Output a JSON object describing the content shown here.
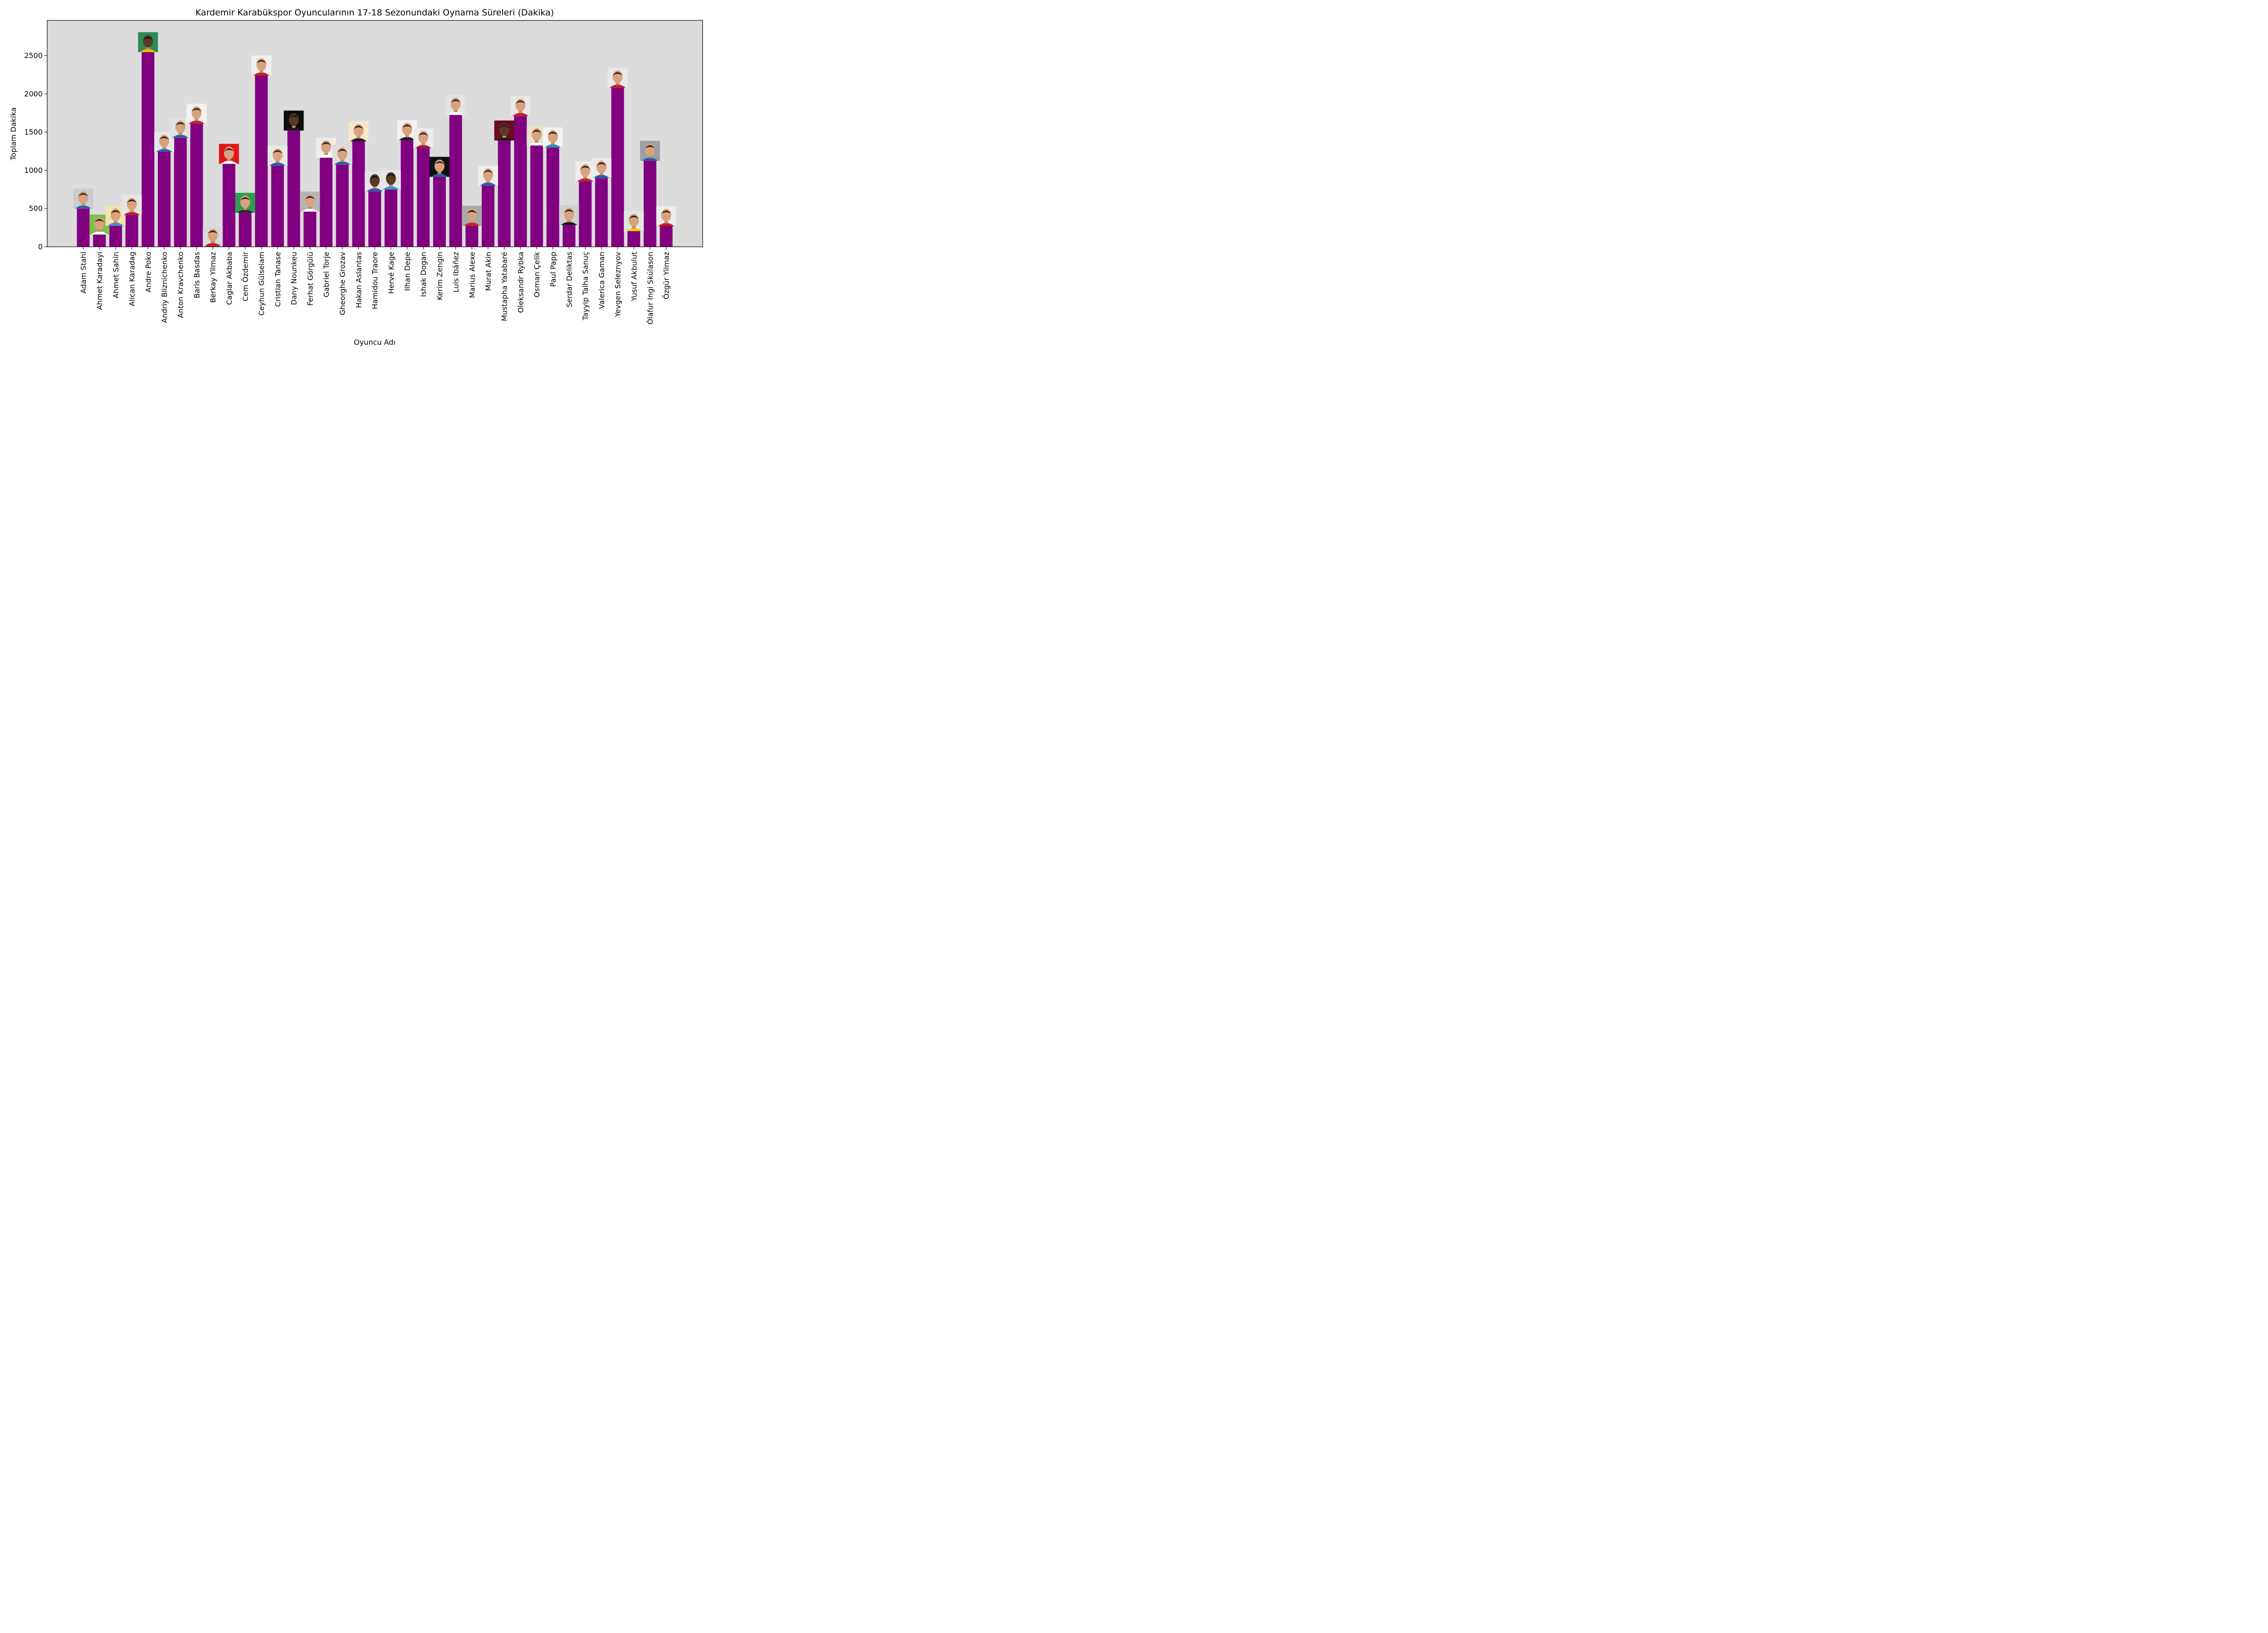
{
  "chart_data": {
    "type": "bar",
    "title": "Kardemir Karabükspor Oyuncularının 17-18 Sezonundaki Oynama Süreleri (Dakika)",
    "xlabel": "Oyuncu Adı",
    "ylabel": "Toplam Dakika",
    "ylim": [
      0,
      2960
    ],
    "yticks": [
      0,
      500,
      1000,
      1500,
      2000,
      2500
    ],
    "grid": false,
    "bar_color": "#800080",
    "plot_background": "#dcdcdc",
    "categories": [
      "Adam Stahl",
      "Ahmet Karadayi",
      "Ahmet Sahin",
      "Alican Karadag",
      "Andre Poko",
      "Andriy Bliznichenko",
      "Anton Kravchenko",
      "Baris Basdas",
      "Berkay Yilmaz",
      "Caglar Akbaba",
      "Cem Özdemir",
      "Ceyhun Gülselam",
      "Cristian Tanase",
      "Dany Nounkeu",
      "Ferhat Görgülü",
      "Gabriel Torje",
      "Gheorghe Grozav",
      "Hakan Aslantas",
      "Hamidou Traore",
      "Hervé Kage",
      "Ilhan Depe",
      "Ishak Dogan",
      "Kerim Zengin",
      "Luis Ibáñez",
      "Marius Alexe",
      "Murat Akin",
      "Mustapha Yatabaré",
      "Oleksandr Rybka",
      "Osman Çelik",
      "Paul Papp",
      "Serdar Deliktas",
      "Tayyip Talha Sanuç",
      "Valerica Gaman",
      "Yevgen Seleznyov",
      "Yusuf Akbulut",
      "Ólafur Ingi Skúlason",
      "Özgür Yilmaz"
    ],
    "values": [
      500,
      160,
      275,
      415,
      2545,
      1240,
      1425,
      1610,
      10,
      1085,
      445,
      2240,
      1060,
      1520,
      460,
      1165,
      1075,
      1380,
      725,
      750,
      1395,
      1290,
      915,
      1725,
      275,
      800,
      1390,
      1710,
      1325,
      1300,
      285,
      855,
      900,
      2080,
      205,
      1125,
      270
    ],
    "photo_backgrounds": [
      "#c9ccd2",
      "#7fbf4a",
      "#f3e3b0",
      "#e6e6e6",
      "#2e8b57",
      "#e8e8e8",
      "#e2e2e2",
      "#f2f2f2",
      "#d9d9d9",
      "#e01818",
      "#2e9e52",
      "#f0f0f0",
      "#e9e9e9",
      "#0d0d0d",
      "#b5b5b5",
      "#eeeeee",
      "#dddddd",
      "#f6e7c8",
      "#e5e5e5",
      "#e6e6e6",
      "#f1f1f1",
      "#ececec",
      "#111111",
      "#e4e4e4",
      "#aaaaaa",
      "#eeeeee",
      "#6b0c22",
      "#e8e8e8",
      "#e8e0d0",
      "#f2f2f2",
      "#cfcfcf",
      "#ececec",
      "#eaeaea",
      "#e9e9e9",
      "#dfe8e0",
      "#9aa0a6",
      "#ececec"
    ],
    "photo_jerseys": [
      "#2a5fa8",
      "#ffffff",
      "#3a8fd0",
      "#c82020",
      "#f0c000",
      "#2a5fa8",
      "#2a5fa8",
      "#c82020",
      "#c82020",
      "#ffffff",
      "#2a2a2a",
      "#c82020",
      "#2a5fa8",
      "#1a1a1a",
      "#ffffff",
      "#ffffff",
      "#2a5fa8",
      "#1a1a1a",
      "#2a5fa8",
      "#3399cc",
      "#1a1a1a",
      "#a01c2c",
      "#2a5fa8",
      "#ffffff",
      "#c82020",
      "#2a5fa8",
      "#1a1a1a",
      "#c82020",
      "#ffffff",
      "#2a8fd0",
      "#1a1a1a",
      "#c82020",
      "#2a5fa8",
      "#c82020",
      "#ffcc00",
      "#2a5fa8",
      "#c82020"
    ]
  }
}
